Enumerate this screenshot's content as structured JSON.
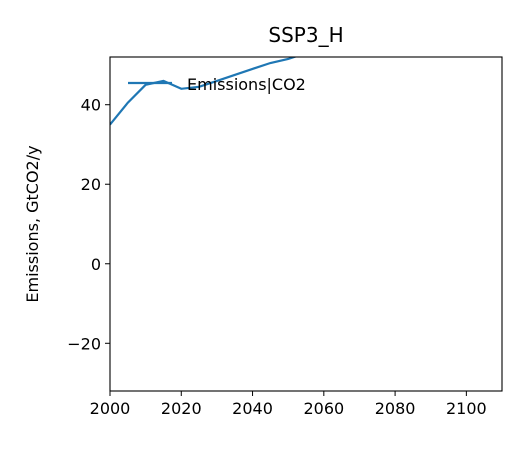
{
  "chart_data": {
    "type": "line",
    "title": "SSP3_H",
    "xlabel": "",
    "ylabel": "Emissions, GtCO2/y",
    "xlim": [
      2000,
      2110
    ],
    "ylim": [
      -32,
      52
    ],
    "xticks": [
      2000,
      2020,
      2040,
      2060,
      2080,
      2100
    ],
    "yticks": [
      -20,
      0,
      20,
      40
    ],
    "grid": false,
    "legend_position": "top-right",
    "series": [
      {
        "name": "Emissions|CO2",
        "color": "#1f77b4",
        "x": [
          2000,
          2005,
          2010,
          2015,
          2020,
          2025,
          2030,
          2035,
          2040,
          2045,
          2050,
          2055
        ],
        "y": [
          35,
          40.5,
          45,
          46,
          44,
          44.5,
          46,
          47.5,
          49,
          50.5,
          51.5,
          53
        ]
      }
    ]
  }
}
